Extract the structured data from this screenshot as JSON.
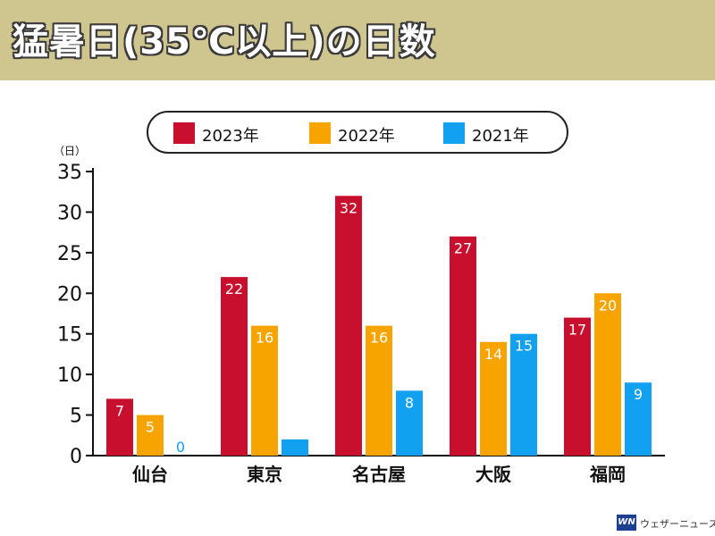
{
  "title": "猛暑日(35℃以上)の日数",
  "unit_label": "（日）",
  "watermark": "ウェザーニュース",
  "watermark_logo": "WN",
  "chart_data": {
    "type": "bar",
    "title": "猛暑日(35℃以上)の日数",
    "ylabel": "（日）",
    "xlabel": "",
    "ylim": [
      0,
      35
    ],
    "yticks": [
      0,
      5,
      10,
      15,
      20,
      25,
      30,
      35
    ],
    "grid": false,
    "legend_position": "top-center",
    "categories": [
      "仙台",
      "東京",
      "名古屋",
      "大阪",
      "福岡"
    ],
    "series": [
      {
        "name": "2023年",
        "color": "#c8102e",
        "values": [
          7,
          22,
          32,
          27,
          17
        ]
      },
      {
        "name": "2022年",
        "color": "#f7a400",
        "values": [
          5,
          16,
          16,
          14,
          20
        ]
      },
      {
        "name": "2021年",
        "color": "#12a0f0",
        "values": [
          0,
          2,
          8,
          15,
          9
        ]
      }
    ]
  }
}
